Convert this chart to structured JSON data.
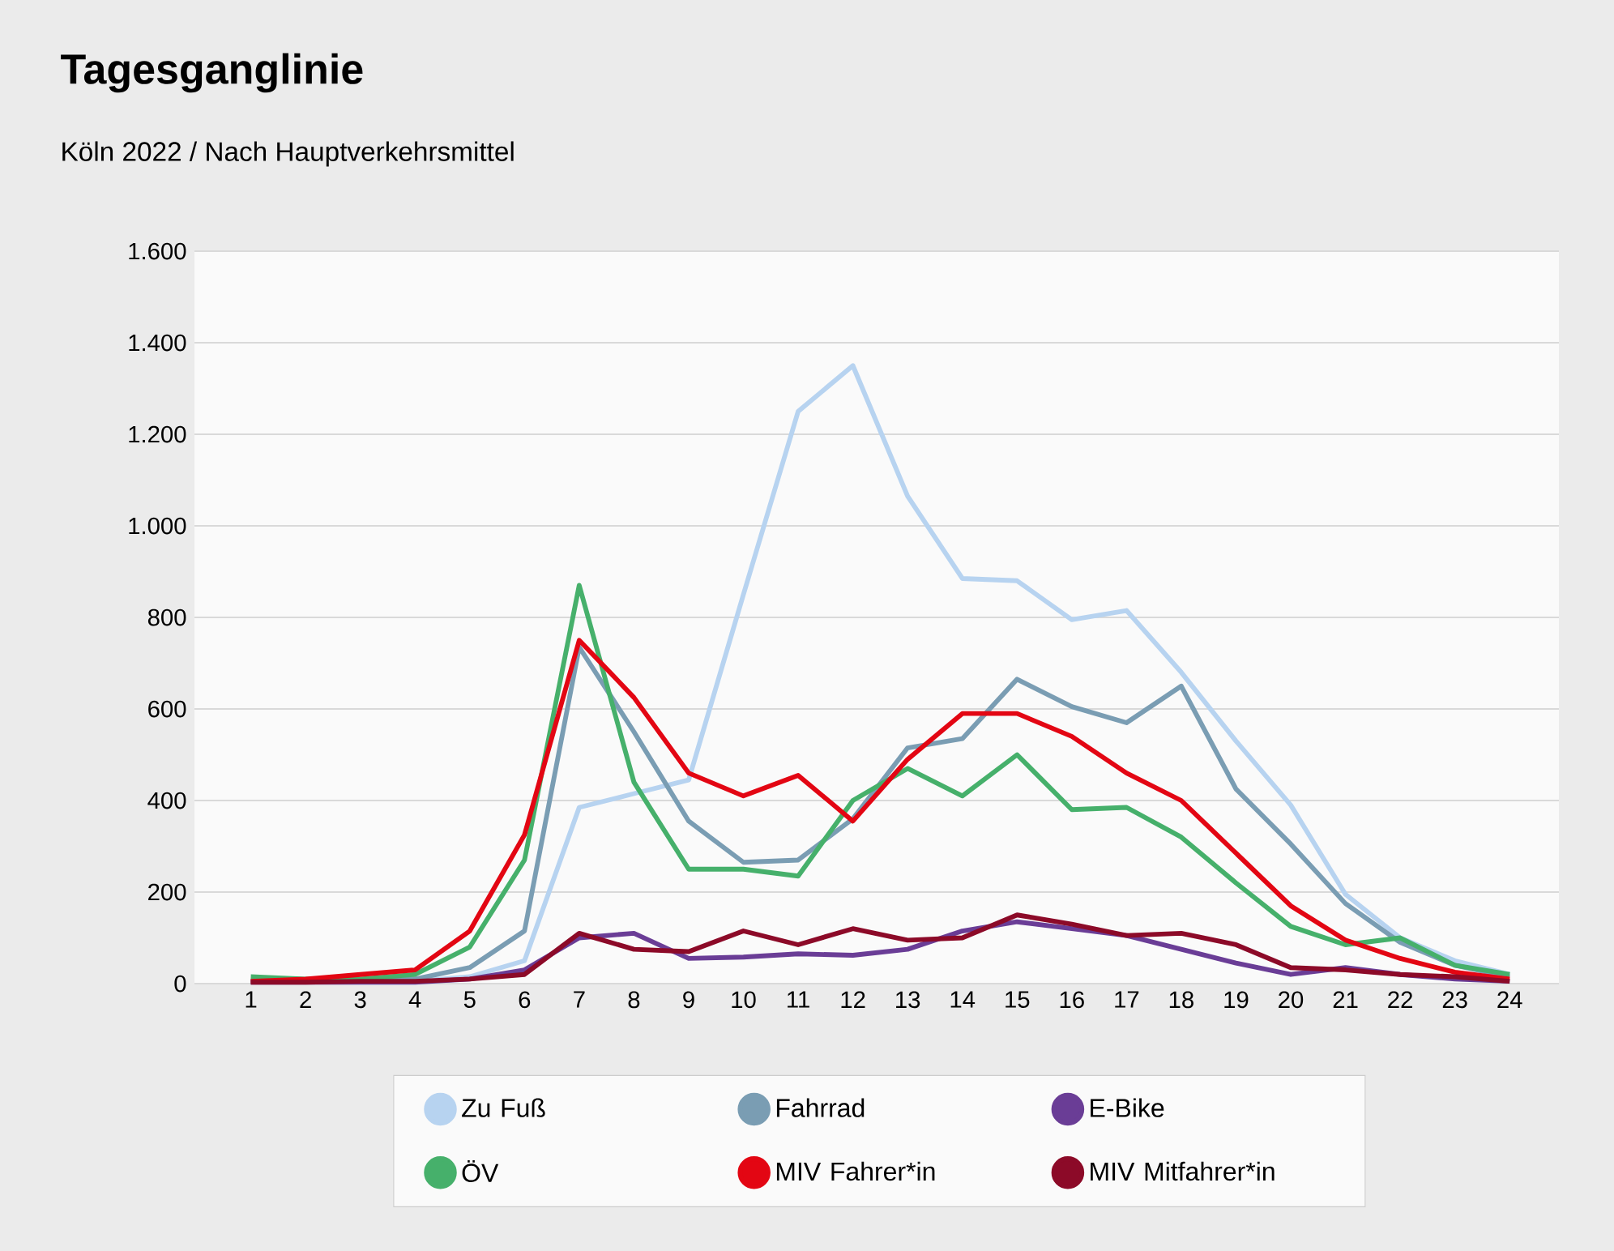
{
  "chart_data": {
    "type": "line",
    "title": "Tagesganglinie",
    "subtitle": "Köln 2022 / Nach Hauptverkehrsmittel",
    "categories": [
      "1",
      "2",
      "3",
      "4",
      "5",
      "6",
      "7",
      "8",
      "9",
      "10",
      "11",
      "12",
      "13",
      "14",
      "15",
      "16",
      "17",
      "18",
      "19",
      "20",
      "21",
      "22",
      "23",
      "24"
    ],
    "ylim": [
      0,
      1600
    ],
    "yticks": [
      0,
      200,
      400,
      600,
      800,
      {
        "value": 1000,
        "label": "1.000"
      },
      {
        "value": 1200,
        "label": "1.200"
      },
      {
        "value": 1400,
        "label": "1.400"
      },
      {
        "value": 1600,
        "label": "1.600"
      }
    ],
    "grid": "y",
    "legend": "bottom",
    "series": [
      {
        "name": "Zu Fuß",
        "color": "#b7d3f0",
        "values": [
          5,
          5,
          5,
          5,
          15,
          50,
          385,
          415,
          445,
          850,
          1250,
          1350,
          1065,
          885,
          880,
          795,
          815,
          680,
          530,
          390,
          195,
          100,
          50,
          20
        ]
      },
      {
        "name": "Fahrrad",
        "color": "#7a9db3",
        "values": [
          5,
          5,
          5,
          10,
          35,
          115,
          735,
          550,
          355,
          265,
          270,
          360,
          515,
          535,
          665,
          605,
          570,
          650,
          425,
          305,
          175,
          90,
          40,
          15
        ]
      },
      {
        "name": "E-Bike",
        "color": "#6a3d96",
        "values": [
          3,
          3,
          3,
          3,
          10,
          30,
          100,
          110,
          55,
          58,
          65,
          62,
          75,
          115,
          135,
          120,
          105,
          75,
          45,
          20,
          35,
          20,
          10,
          5
        ]
      },
      {
        "name": "ÖV",
        "color": "#46b06b",
        "values": [
          15,
          10,
          10,
          20,
          80,
          270,
          870,
          440,
          250,
          250,
          235,
          400,
          470,
          410,
          500,
          380,
          385,
          320,
          220,
          125,
          85,
          100,
          40,
          20
        ]
      },
      {
        "name": "MIV Fahrer*in",
        "color": "#e30613",
        "values": [
          5,
          10,
          20,
          30,
          115,
          325,
          750,
          625,
          460,
          410,
          455,
          355,
          490,
          590,
          590,
          540,
          460,
          400,
          285,
          170,
          95,
          55,
          25,
          10
        ]
      },
      {
        "name": "MIV Mitfahrer*in",
        "color": "#8c0a28",
        "values": [
          3,
          3,
          5,
          5,
          10,
          20,
          110,
          75,
          70,
          115,
          85,
          120,
          95,
          100,
          150,
          130,
          105,
          110,
          85,
          35,
          30,
          20,
          15,
          5
        ]
      }
    ]
  }
}
